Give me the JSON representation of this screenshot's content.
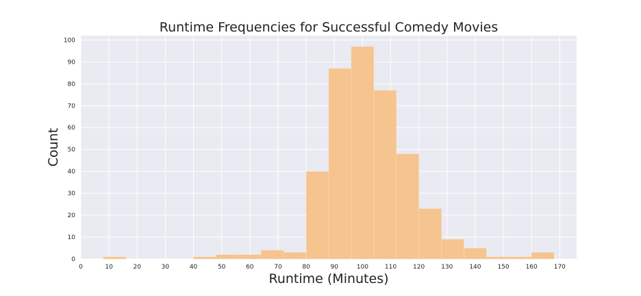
{
  "chart_data": {
    "type": "bar",
    "title": "Runtime Frequencies for Successful Comedy Movies",
    "xlabel": "Runtime (Minutes)",
    "ylabel": "Count",
    "xlim": [
      0,
      176
    ],
    "ylim": [
      0,
      102
    ],
    "xticks": [
      "0",
      "10",
      "20",
      "30",
      "40",
      "50",
      "60",
      "70",
      "80",
      "90",
      "100",
      "110",
      "120",
      "130",
      "140",
      "150",
      "160",
      "170"
    ],
    "yticks": [
      "0",
      "10",
      "20",
      "30",
      "40",
      "50",
      "60",
      "70",
      "80",
      "90",
      "100"
    ],
    "grid": true,
    "bins": [
      {
        "start": 8,
        "end": 16,
        "count": 1
      },
      {
        "start": 40,
        "end": 48,
        "count": 1
      },
      {
        "start": 48,
        "end": 56,
        "count": 2
      },
      {
        "start": 56,
        "end": 64,
        "count": 2
      },
      {
        "start": 64,
        "end": 72,
        "count": 4
      },
      {
        "start": 72,
        "end": 80,
        "count": 3
      },
      {
        "start": 80,
        "end": 88,
        "count": 40
      },
      {
        "start": 88,
        "end": 96,
        "count": 87
      },
      {
        "start": 96,
        "end": 104,
        "count": 97
      },
      {
        "start": 104,
        "end": 112,
        "count": 77
      },
      {
        "start": 112,
        "end": 120,
        "count": 48
      },
      {
        "start": 120,
        "end": 128,
        "count": 23
      },
      {
        "start": 128,
        "end": 136,
        "count": 9
      },
      {
        "start": 136,
        "end": 144,
        "count": 5
      },
      {
        "start": 144,
        "end": 152,
        "count": 1
      },
      {
        "start": 152,
        "end": 160,
        "count": 1
      },
      {
        "start": 160,
        "end": 168,
        "count": 3
      }
    ],
    "colors": {
      "bar": "#f5c48f",
      "bar_edge": "#f7dcc0",
      "plot_background": "#eaeaf2",
      "grid": "#ffffff"
    }
  }
}
